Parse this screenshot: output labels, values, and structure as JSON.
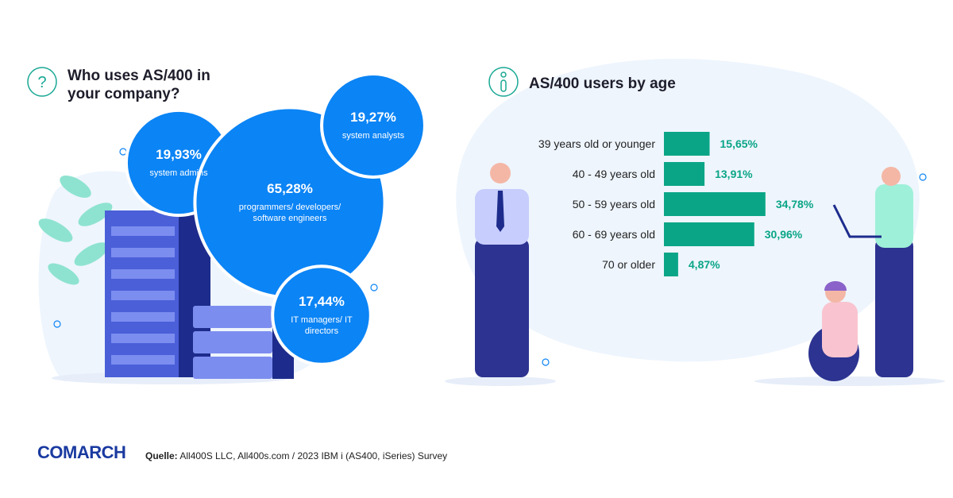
{
  "chart_data": [
    {
      "type": "bubble",
      "title": "Who uses AS/400 in your company?",
      "categories": [
        "system admins",
        "programmers/ developers/ software engineers",
        "system analysts",
        "IT managers/ IT directors"
      ],
      "values": [
        19.93,
        65.28,
        19.27,
        17.44
      ],
      "value_labels": [
        "19,93%",
        "65,28%",
        "19,27%",
        "17,44%"
      ],
      "colors": [
        "#0b84f5",
        "#0b84f5",
        "#0b84f5",
        "#0b84f5"
      ]
    },
    {
      "type": "hbar",
      "title": "AS/400 users by age",
      "categories": [
        "39 years old or younger",
        "40 - 49 years old",
        "50 - 59 years old",
        "60 - 69 years old",
        "70 or older"
      ],
      "values": [
        15.65,
        13.91,
        34.78,
        30.96,
        4.87
      ],
      "value_labels": [
        "15,65%",
        "13,91%",
        "34,78%",
        "30,96%",
        "4,87%"
      ],
      "color": "#0aa587",
      "xlim": [
        0,
        40
      ]
    }
  ],
  "footer": {
    "brand": "COMARCH",
    "source_label": "Quelle:",
    "source": "All400S LLC, All400s.com / 2023 IBM i (AS400, iSeries) Survey"
  }
}
